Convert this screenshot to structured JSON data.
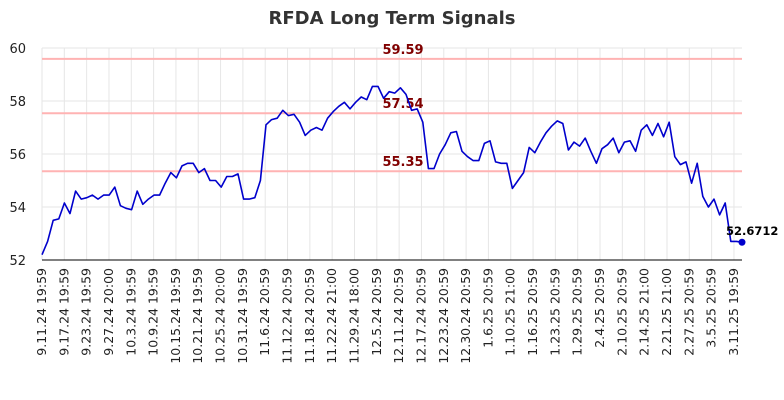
{
  "chart_data": {
    "type": "line",
    "title": "RFDA Long Term Signals",
    "ylim": [
      52,
      60
    ],
    "yticks": [
      52,
      54,
      56,
      58,
      60
    ],
    "grid": true,
    "xticks": [
      "9.11.24 19:59",
      "9.17.24 19:59",
      "9.23.24 19:59",
      "9.27.24 20:00",
      "10.3.24 19:59",
      "10.9.24 19:59",
      "10.15.24 19:59",
      "10.21.24 19:59",
      "10.25.24 20:00",
      "10.31.24 19:59",
      "11.6.24 20:59",
      "11.12.24 20:59",
      "11.18.24 20:59",
      "11.22.24 21:00",
      "11.29.24 18:00",
      "12.5.24 20:59",
      "12.11.24 20:59",
      "12.17.24 20:59",
      "12.23.24 20:59",
      "12.30.24 20:59",
      "1.6.25 20:59",
      "1.10.25 21:00",
      "1.16.25 20:59",
      "1.23.25 20:59",
      "1.29.25 20:59",
      "2.4.25 20:59",
      "2.10.25 20:59",
      "2.14.25 21:00",
      "2.21.25 21:00",
      "2.27.25 20:59",
      "3.5.25 20:59",
      "3.11.25 19:59"
    ],
    "levels": [
      {
        "value": 59.59,
        "label": "59.59"
      },
      {
        "value": 57.54,
        "label": "57.54"
      },
      {
        "value": 55.35,
        "label": "55.35"
      }
    ],
    "last_value_label": "52.6712",
    "colors": {
      "line": "#0000cc",
      "level": "#ffb3b3",
      "level_text": "#800000",
      "grid": "#e6e6e6"
    },
    "series": [
      {
        "values": [
          52.2,
          52.7,
          53.5,
          53.55,
          54.15,
          53.75,
          54.6,
          54.3,
          54.35,
          54.45,
          54.3,
          54.45,
          54.45,
          54.75,
          54.05,
          53.95,
          53.9,
          54.6,
          54.1,
          54.3,
          54.45,
          54.45,
          54.9,
          55.3,
          55.1,
          55.55,
          55.65,
          55.65,
          55.3,
          55.45,
          55.0,
          55.0,
          54.75,
          55.15,
          55.15,
          55.25,
          54.3,
          54.3,
          54.35,
          55.0,
          57.1,
          57.3,
          57.35,
          57.65,
          57.45,
          57.5,
          57.2,
          56.7,
          56.9,
          57.0,
          56.9,
          57.35,
          57.6,
          57.8,
          57.95,
          57.7,
          57.95,
          58.15,
          58.05,
          58.55,
          58.55,
          58.1,
          58.35,
          58.3,
          58.5,
          58.25,
          57.65,
          57.7,
          57.2,
          55.45,
          55.45,
          56.0,
          56.35,
          56.8,
          56.85,
          56.1,
          55.9,
          55.75,
          55.75,
          56.4,
          56.5,
          55.7,
          55.65,
          55.65,
          54.7,
          55.0,
          55.3,
          56.25,
          56.05,
          56.45,
          56.8,
          57.05,
          57.25,
          57.15,
          56.15,
          56.45,
          56.3,
          56.6,
          56.1,
          55.65,
          56.2,
          56.35,
          56.6,
          56.05,
          56.45,
          56.5,
          56.1,
          56.9,
          57.1,
          56.7,
          57.15,
          56.65,
          57.2,
          55.9,
          55.6,
          55.7,
          54.9,
          55.65,
          54.4,
          54.0,
          54.3,
          53.7,
          54.15,
          52.7,
          52.7,
          52.6712
        ]
      }
    ]
  }
}
